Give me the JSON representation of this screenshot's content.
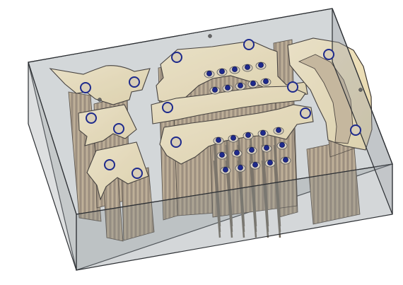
{
  "scene": {
    "object": "mold-part-in-transparent-block",
    "colors": {
      "background": "#ffffff",
      "block_fill": "#9da2a7",
      "block_edge": "#2c2f33",
      "part_top": "#efe2bc",
      "part_side": "#bda98a",
      "part_side_dark": "#8f7f69",
      "hole_ring": "#1e2a8c",
      "hole_inner": "#d9cfb7",
      "pin": "#6f6658"
    }
  }
}
